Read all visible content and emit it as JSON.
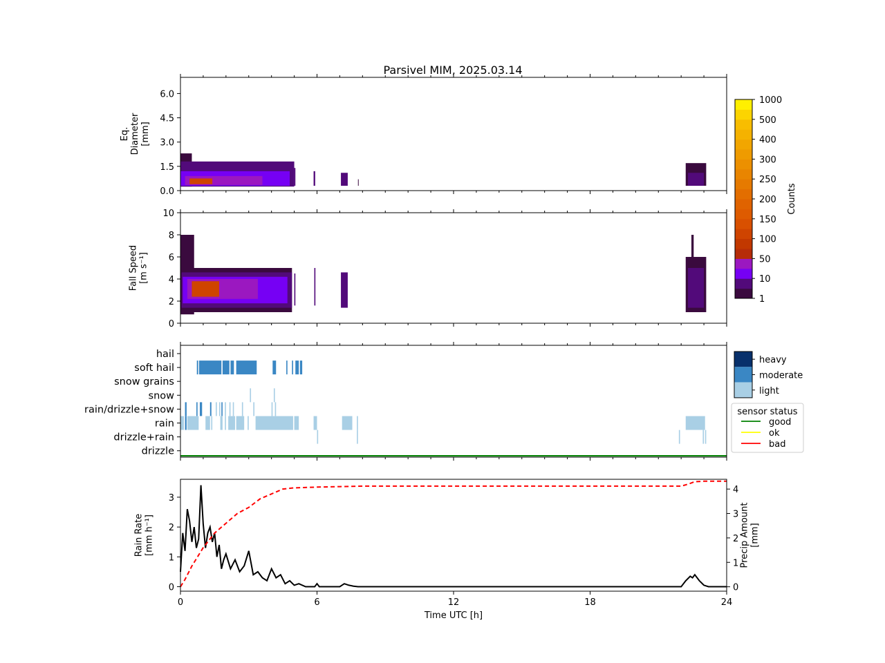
{
  "title": "Parsivel MIM, 2025.03.14",
  "chart_data": [
    {
      "id": "diameter",
      "type": "heatmap",
      "ylabel_lines": [
        "Eq.",
        "Diameter",
        "[mm]"
      ],
      "ylim": [
        0,
        7
      ],
      "yticks": [
        "0.0",
        "1.5",
        "3.0",
        "4.5",
        "6.0"
      ],
      "ytick_values": [
        0,
        1.5,
        3.0,
        4.5,
        6.0
      ],
      "xlim": [
        0,
        24
      ],
      "blocks": [
        {
          "t0": 0.0,
          "t1": 0.5,
          "d0": 0.25,
          "d1": 2.3,
          "level": 1
        },
        {
          "t0": 0.0,
          "t1": 5.0,
          "d0": 0.25,
          "d1": 1.8,
          "level": 2
        },
        {
          "t0": 0.0,
          "t1": 4.8,
          "d0": 0.3,
          "d1": 1.2,
          "level": 3
        },
        {
          "t0": 0.2,
          "t1": 3.6,
          "d0": 0.35,
          "d1": 0.9,
          "level": 4
        },
        {
          "t0": 0.4,
          "t1": 1.4,
          "d0": 0.4,
          "d1": 0.75,
          "level": 5
        },
        {
          "t0": 5.0,
          "t1": 5.05,
          "d0": 0.3,
          "d1": 1.4,
          "level": 2
        },
        {
          "t0": 5.85,
          "t1": 5.92,
          "d0": 0.3,
          "d1": 1.2,
          "level": 2
        },
        {
          "t0": 7.05,
          "t1": 7.35,
          "d0": 0.3,
          "d1": 1.1,
          "level": 2
        },
        {
          "t0": 7.8,
          "t1": 7.82,
          "d0": 0.3,
          "d1": 0.7,
          "level": 1
        },
        {
          "t0": 22.2,
          "t1": 23.1,
          "d0": 0.3,
          "d1": 1.7,
          "level": 1
        },
        {
          "t0": 22.3,
          "t1": 23.0,
          "d0": 0.3,
          "d1": 1.1,
          "level": 2
        }
      ]
    },
    {
      "id": "fallspeed",
      "type": "heatmap",
      "ylabel_lines": [
        "Fall Speed",
        "[m s⁻¹]"
      ],
      "ylim": [
        0,
        10
      ],
      "yticks": [
        "0",
        "2",
        "4",
        "6",
        "8",
        "10"
      ],
      "ytick_values": [
        0,
        2,
        4,
        6,
        8,
        10
      ],
      "xlim": [
        0,
        24
      ],
      "blocks": [
        {
          "t0": 0.0,
          "t1": 0.6,
          "v0": 0.8,
          "v1": 8.0,
          "level": 1
        },
        {
          "t0": 0.0,
          "t1": 4.9,
          "v0": 1.0,
          "v1": 5.0,
          "level": 1
        },
        {
          "t0": 0.05,
          "t1": 4.9,
          "v0": 1.4,
          "v1": 4.6,
          "level": 2
        },
        {
          "t0": 0.1,
          "t1": 4.7,
          "v0": 1.8,
          "v1": 4.2,
          "level": 3
        },
        {
          "t0": 0.3,
          "t1": 3.4,
          "v0": 2.2,
          "v1": 4.0,
          "level": 4
        },
        {
          "t0": 0.5,
          "t1": 1.7,
          "v0": 2.4,
          "v1": 3.8,
          "level": 5
        },
        {
          "t0": 5.0,
          "t1": 5.05,
          "v0": 1.6,
          "v1": 4.5,
          "level": 2
        },
        {
          "t0": 5.88,
          "t1": 5.93,
          "v0": 1.6,
          "v1": 5.0,
          "level": 2
        },
        {
          "t0": 7.05,
          "t1": 7.35,
          "v0": 1.4,
          "v1": 4.6,
          "level": 2
        },
        {
          "t0": 22.2,
          "t1": 23.1,
          "v0": 1.0,
          "v1": 6.0,
          "level": 1
        },
        {
          "t0": 22.3,
          "t1": 23.0,
          "v0": 1.4,
          "v1": 5.0,
          "level": 2
        },
        {
          "t0": 22.45,
          "t1": 22.55,
          "v0": 5.0,
          "v1": 8.0,
          "level": 1
        }
      ]
    },
    {
      "id": "precip_type",
      "type": "heatmap",
      "categories": [
        "hail",
        "soft hail",
        "snow grains",
        "snow",
        "rain/drizzle+snow",
        "rain",
        "drizzle+rain",
        "drizzle"
      ],
      "xlim": [
        0,
        24
      ],
      "intensity_legend": [
        "heavy",
        "moderate",
        "light"
      ],
      "intensity_colors": [
        "#08306b",
        "#3a87c4",
        "#a9cfe5"
      ],
      "segments": [
        {
          "cat": "soft hail",
          "t0": 0.72,
          "t1": 0.78,
          "level": 1
        },
        {
          "cat": "soft hail",
          "t0": 0.82,
          "t1": 1.8,
          "level": 1
        },
        {
          "cat": "soft hail",
          "t0": 1.85,
          "t1": 2.15,
          "level": 1
        },
        {
          "cat": "soft hail",
          "t0": 2.2,
          "t1": 2.35,
          "level": 1
        },
        {
          "cat": "soft hail",
          "t0": 2.45,
          "t1": 3.35,
          "level": 1
        },
        {
          "cat": "soft hail",
          "t0": 4.05,
          "t1": 4.2,
          "level": 1
        },
        {
          "cat": "soft hail",
          "t0": 4.65,
          "t1": 4.7,
          "level": 1
        },
        {
          "cat": "soft hail",
          "t0": 4.9,
          "t1": 4.95,
          "level": 1
        },
        {
          "cat": "soft hail",
          "t0": 5.05,
          "t1": 5.2,
          "level": 1
        },
        {
          "cat": "soft hail",
          "t0": 5.25,
          "t1": 5.35,
          "level": 1
        },
        {
          "cat": "snow",
          "t0": 3.05,
          "t1": 3.1,
          "level": 2
        },
        {
          "cat": "snow",
          "t0": 4.1,
          "t1": 4.15,
          "level": 2
        },
        {
          "cat": "rain/drizzle+snow",
          "t0": 0.2,
          "t1": 0.27,
          "level": 1
        },
        {
          "cat": "rain/drizzle+snow",
          "t0": 0.7,
          "t1": 0.75,
          "level": 1
        },
        {
          "cat": "rain/drizzle+snow",
          "t0": 0.85,
          "t1": 0.95,
          "level": 1
        },
        {
          "cat": "rain/drizzle+snow",
          "t0": 1.3,
          "t1": 1.36,
          "level": 1
        },
        {
          "cat": "rain/drizzle+snow",
          "t0": 1.55,
          "t1": 1.6,
          "level": 2
        },
        {
          "cat": "rain/drizzle+snow",
          "t0": 1.7,
          "t1": 1.75,
          "level": 2
        },
        {
          "cat": "rain/drizzle+snow",
          "t0": 1.8,
          "t1": 1.85,
          "level": 1
        },
        {
          "cat": "rain/drizzle+snow",
          "t0": 1.95,
          "t1": 2.0,
          "level": 2
        },
        {
          "cat": "rain/drizzle+snow",
          "t0": 2.15,
          "t1": 2.2,
          "level": 2
        },
        {
          "cat": "rain/drizzle+snow",
          "t0": 2.3,
          "t1": 2.35,
          "level": 2
        },
        {
          "cat": "rain/drizzle+snow",
          "t0": 2.7,
          "t1": 2.75,
          "level": 2
        },
        {
          "cat": "rain/drizzle+snow",
          "t0": 3.2,
          "t1": 3.25,
          "level": 2
        },
        {
          "cat": "rain/drizzle+snow",
          "t0": 4.0,
          "t1": 4.05,
          "level": 2
        },
        {
          "cat": "rain/drizzle+snow",
          "t0": 4.15,
          "t1": 4.2,
          "level": 2
        },
        {
          "cat": "rain",
          "t0": 0.0,
          "t1": 0.15,
          "level": 2
        },
        {
          "cat": "rain",
          "t0": 0.2,
          "t1": 0.27,
          "level": 1
        },
        {
          "cat": "rain",
          "t0": 0.3,
          "t1": 0.8,
          "level": 2
        },
        {
          "cat": "rain",
          "t0": 1.1,
          "t1": 1.3,
          "level": 2
        },
        {
          "cat": "rain",
          "t0": 1.35,
          "t1": 1.4,
          "level": 2
        },
        {
          "cat": "rain",
          "t0": 1.75,
          "t1": 1.85,
          "level": 2
        },
        {
          "cat": "rain",
          "t0": 1.95,
          "t1": 2.0,
          "level": 2
        },
        {
          "cat": "rain",
          "t0": 2.1,
          "t1": 2.4,
          "level": 2
        },
        {
          "cat": "rain",
          "t0": 2.45,
          "t1": 2.8,
          "level": 2
        },
        {
          "cat": "rain",
          "t0": 2.95,
          "t1": 3.0,
          "level": 2
        },
        {
          "cat": "rain",
          "t0": 3.3,
          "t1": 4.95,
          "level": 2
        },
        {
          "cat": "rain",
          "t0": 5.0,
          "t1": 5.2,
          "level": 2
        },
        {
          "cat": "rain",
          "t0": 5.85,
          "t1": 6.0,
          "level": 2
        },
        {
          "cat": "rain",
          "t0": 7.1,
          "t1": 7.55,
          "level": 2
        },
        {
          "cat": "rain",
          "t0": 7.75,
          "t1": 7.8,
          "level": 2
        },
        {
          "cat": "rain",
          "t0": 22.2,
          "t1": 23.05,
          "level": 2
        },
        {
          "cat": "drizzle+rain",
          "t0": 6.0,
          "t1": 6.05,
          "level": 2
        },
        {
          "cat": "drizzle+rain",
          "t0": 7.75,
          "t1": 7.8,
          "level": 2
        },
        {
          "cat": "drizzle+rain",
          "t0": 21.9,
          "t1": 21.95,
          "level": 2
        },
        {
          "cat": "drizzle+rain",
          "t0": 22.95,
          "t1": 23.0,
          "level": 2
        },
        {
          "cat": "drizzle+rain",
          "t0": 23.05,
          "t1": 23.1,
          "level": 2
        }
      ]
    },
    {
      "id": "rain",
      "type": "line",
      "ylabel_lines": [
        "Rain Rate",
        "[mm h⁻¹]"
      ],
      "y2label_lines": [
        "Precip Amount",
        "[mm]"
      ],
      "xlabel": "Time UTC [h]",
      "xlim": [
        0,
        24
      ],
      "xticks": [
        "0",
        "6",
        "12",
        "18",
        "24"
      ],
      "xtick_values": [
        0,
        6,
        12,
        18,
        24
      ],
      "ylim": [
        -0.15,
        3.6
      ],
      "yticks": [
        "0",
        "1",
        "2",
        "3"
      ],
      "ytick_values": [
        0,
        1,
        2,
        3
      ],
      "y2lim": [
        -0.18,
        4.4
      ],
      "y2ticks": [
        "0",
        "1",
        "2",
        "3",
        "4"
      ],
      "y2tick_values": [
        0,
        1,
        2,
        3,
        4
      ],
      "series": [
        {
          "color": "#000000",
          "dash": "none",
          "x": [
            0,
            0.1,
            0.2,
            0.3,
            0.4,
            0.5,
            0.6,
            0.7,
            0.8,
            0.9,
            1.0,
            1.1,
            1.2,
            1.3,
            1.4,
            1.5,
            1.6,
            1.7,
            1.8,
            1.9,
            2.0,
            2.2,
            2.4,
            2.6,
            2.8,
            3.0,
            3.2,
            3.4,
            3.6,
            3.8,
            4.0,
            4.2,
            4.4,
            4.6,
            4.8,
            5.0,
            5.2,
            5.5,
            5.9,
            6.0,
            6.1,
            6.5,
            7.0,
            7.2,
            7.4,
            7.6,
            7.8,
            8.0,
            12,
            16,
            20,
            22.0,
            22.2,
            22.4,
            22.5,
            22.6,
            22.8,
            23.0,
            23.2,
            24
          ],
          "y": [
            0.5,
            1.8,
            1.2,
            2.6,
            2.2,
            1.5,
            2.0,
            1.3,
            1.6,
            3.4,
            2.1,
            1.3,
            1.8,
            2.0,
            1.5,
            1.8,
            1.0,
            1.4,
            0.6,
            0.9,
            1.1,
            0.6,
            0.9,
            0.5,
            0.7,
            1.2,
            0.4,
            0.5,
            0.3,
            0.2,
            0.6,
            0.3,
            0.4,
            0.1,
            0.2,
            0.05,
            0.1,
            0.0,
            0.0,
            0.1,
            0.0,
            0.0,
            0.0,
            0.1,
            0.05,
            0.02,
            0.0,
            0.0,
            0.0,
            0.0,
            0.0,
            0.0,
            0.2,
            0.35,
            0.3,
            0.4,
            0.2,
            0.05,
            0.0,
            0.0
          ]
        },
        {
          "color": "#ff0000",
          "dash": "6,4",
          "axis": "right",
          "x": [
            0,
            0.2,
            0.5,
            1.0,
            1.5,
            2.0,
            2.5,
            3.0,
            3.5,
            4.0,
            4.5,
            5.0,
            6.0,
            7.0,
            8.0,
            12,
            18,
            22.0,
            22.3,
            22.6,
            23.0,
            24
          ],
          "y": [
            0,
            0.3,
            0.85,
            1.6,
            2.2,
            2.6,
            3.0,
            3.25,
            3.6,
            3.8,
            4.0,
            4.05,
            4.08,
            4.1,
            4.12,
            4.12,
            4.12,
            4.12,
            4.2,
            4.3,
            4.32,
            4.32
          ]
        }
      ]
    }
  ],
  "colorbar": {
    "label": "Counts",
    "ticks": [
      "1",
      "10",
      "50",
      "100",
      "150",
      "200",
      "250",
      "300",
      "400",
      "500",
      "1000"
    ],
    "colors": [
      "#3a0a3e",
      "#520a7a",
      "#7600f4",
      "#9b18c0",
      "#b62c08",
      "#c23800",
      "#cf4400",
      "#d95000",
      "#de5b00",
      "#e06300",
      "#e36e00",
      "#e67a00",
      "#e98500",
      "#ec9000",
      "#ef9b00",
      "#f2a600",
      "#f5b200",
      "#f8bd00",
      "#fcd400",
      "#fff000"
    ],
    "level_colors": [
      "#3a0a3e",
      "#520a7a",
      "#7600f4",
      "#9b18c0",
      "#cf4400"
    ]
  },
  "sensor_legend": {
    "title": "sensor status",
    "items": [
      {
        "label": "good",
        "color": "#008000"
      },
      {
        "label": "ok",
        "color": "#ffff00"
      },
      {
        "label": "bad",
        "color": "#ff0000"
      }
    ]
  }
}
